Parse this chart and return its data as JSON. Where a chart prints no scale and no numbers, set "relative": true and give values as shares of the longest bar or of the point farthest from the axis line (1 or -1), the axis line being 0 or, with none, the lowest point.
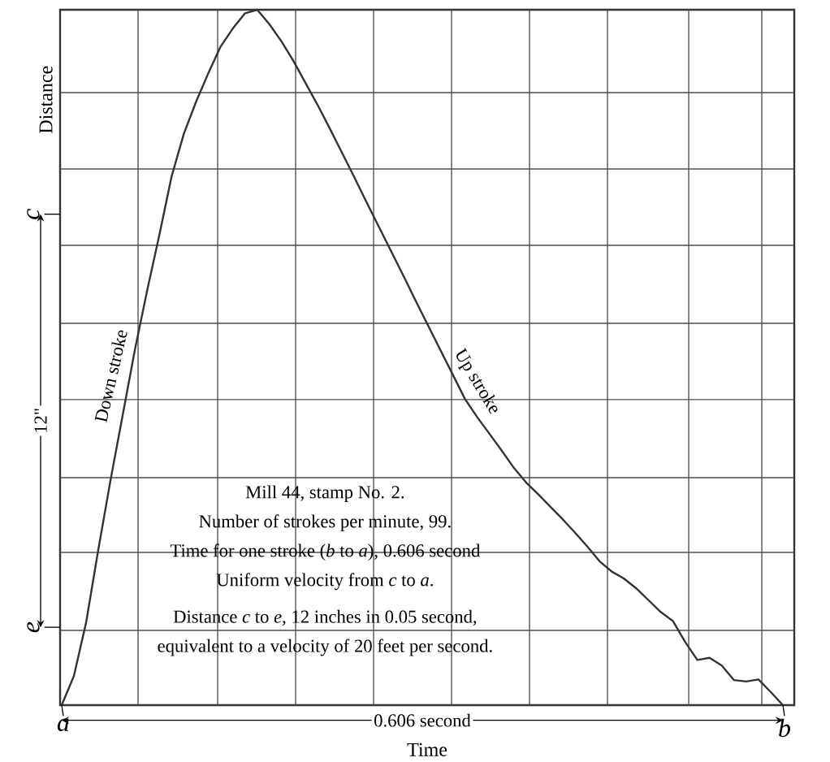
{
  "chart_data": {
    "type": "line",
    "relative": true,
    "xlabel": "Time",
    "ylabel": "Distance",
    "categories": [
      null,
      null,
      null,
      null,
      null,
      null,
      null,
      null,
      null,
      null,
      null,
      null,
      null,
      null,
      null,
      null,
      null,
      null,
      null,
      null,
      null,
      null,
      null,
      null,
      null,
      null,
      null,
      null,
      null,
      null,
      null,
      null,
      null,
      null,
      null,
      null,
      null,
      null,
      null,
      null,
      null,
      null,
      null,
      null,
      null,
      null,
      null,
      null,
      null,
      null,
      null,
      null,
      null,
      null,
      null,
      null,
      null,
      null,
      null,
      null
    ],
    "series": [
      {
        "color": "#333333",
        "values": [
          0,
          0.042,
          0.119,
          0.224,
          0.324,
          0.418,
          0.512,
          0.597,
          0.677,
          0.761,
          0.822,
          0.868,
          0.909,
          0.947,
          0.973,
          0.995,
          1,
          0.979,
          0.954,
          0.925,
          0.893,
          0.861,
          0.827,
          0.792,
          0.757,
          0.721,
          0.686,
          0.651,
          0.616,
          0.58,
          0.545,
          0.51,
          0.475,
          0.44,
          0.414,
          0.39,
          0.366,
          0.341,
          0.32,
          0.303,
          0.285,
          0.267,
          0.248,
          0.228,
          0.207,
          0.192,
          0.182,
          0.168,
          0.151,
          0.134,
          0.121,
          0.091,
          0.065,
          0.068,
          0.057,
          0.036,
          0.034,
          0.037,
          0.019,
          0
        ]
      }
    ],
    "grid": true,
    "annotations": [
      "Down stroke",
      "Up stroke",
      "a",
      "b",
      "c",
      "e",
      "Mill 44, stamp No. 2.",
      "Number of strokes per minute, 99.",
      "Time for one stroke (*b* to *a*), 0.606 second",
      "Uniform velocity from *c* to *a*.",
      "Distance *c* to *e*, 12 inches in 0.05 second,",
      "equivalent to a velocity of 20 feet per second.",
      "12\"",
      "0.606 second"
    ]
  }
}
